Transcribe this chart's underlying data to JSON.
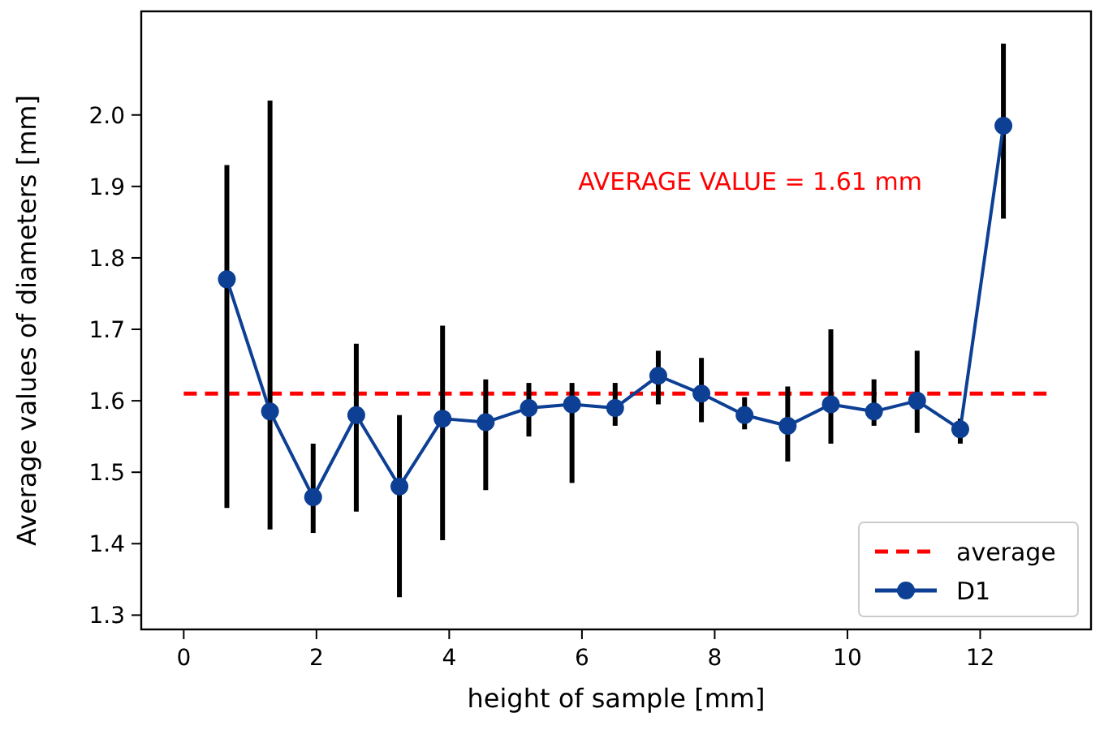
{
  "chart_data": {
    "type": "line",
    "xlabel": "height of sample [mm]",
    "ylabel": "Average values of diameters [mm]",
    "xlim": [
      -0.64,
      13.67
    ],
    "xticks": [
      0,
      2,
      4,
      6,
      8,
      10,
      12
    ],
    "ylim": [
      1.28,
      2.145
    ],
    "yticks": [
      1.3,
      1.4,
      1.5,
      1.6,
      1.7,
      1.8,
      1.9,
      {
        "value": 2,
        "label": "2.0"
      }
    ],
    "legend": "bottom right",
    "grid": false,
    "annotations": [
      "AVERAGE VALUE = 1.61 mm"
    ],
    "series": [
      {
        "name": "average",
        "color": "#ff0000",
        "line_style": "dashed",
        "marker": "none",
        "x": [
          0,
          13
        ],
        "values": [
          1.61,
          1.61
        ]
      },
      {
        "name": "D1",
        "color": "#0d3f94",
        "marker": "circle",
        "line_style": "solid",
        "x": [
          0.65,
          1.3,
          1.95,
          2.6,
          3.25,
          3.9,
          4.55,
          5.2,
          5.85,
          6.5,
          7.15,
          7.8,
          8.45,
          9.1,
          9.75,
          10.4,
          11.05,
          11.7,
          12.35
        ],
        "values": [
          1.77,
          1.585,
          1.465,
          1.58,
          1.48,
          1.575,
          1.57,
          1.59,
          1.595,
          1.59,
          1.635,
          1.61,
          1.58,
          1.565,
          1.595,
          1.585,
          1.6,
          1.56,
          1.985
        ],
        "errors": [
          [
            1.45,
            1.93
          ],
          [
            1.42,
            2.02
          ],
          [
            1.415,
            1.54
          ],
          [
            1.445,
            1.68
          ],
          [
            1.325,
            1.58
          ],
          [
            1.405,
            1.705
          ],
          [
            1.475,
            1.63
          ],
          [
            1.55,
            1.625
          ],
          [
            1.485,
            1.625
          ],
          [
            1.565,
            1.625
          ],
          [
            1.595,
            1.67
          ],
          [
            1.57,
            1.66
          ],
          [
            1.56,
            1.605
          ],
          [
            1.515,
            1.62
          ],
          [
            1.54,
            1.7
          ],
          [
            1.565,
            1.63
          ],
          [
            1.555,
            1.67
          ],
          [
            1.54,
            1.575
          ],
          [
            1.855,
            2.1
          ]
        ]
      }
    ]
  }
}
